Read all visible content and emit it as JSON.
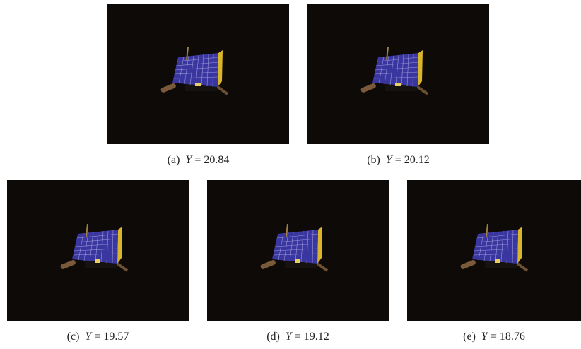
{
  "figure": {
    "panels": [
      {
        "label": "(a)",
        "variable": "Y",
        "relation": "=",
        "value": 20.84
      },
      {
        "label": "(b)",
        "variable": "Y",
        "relation": "=",
        "value": 20.12
      },
      {
        "label": "(c)",
        "variable": "Y",
        "relation": "=",
        "value": 19.57
      },
      {
        "label": "(d)",
        "variable": "Y",
        "relation": "=",
        "value": 19.12
      },
      {
        "label": "(e)",
        "variable": "Y",
        "relation": "=",
        "value": 18.76
      }
    ]
  }
}
